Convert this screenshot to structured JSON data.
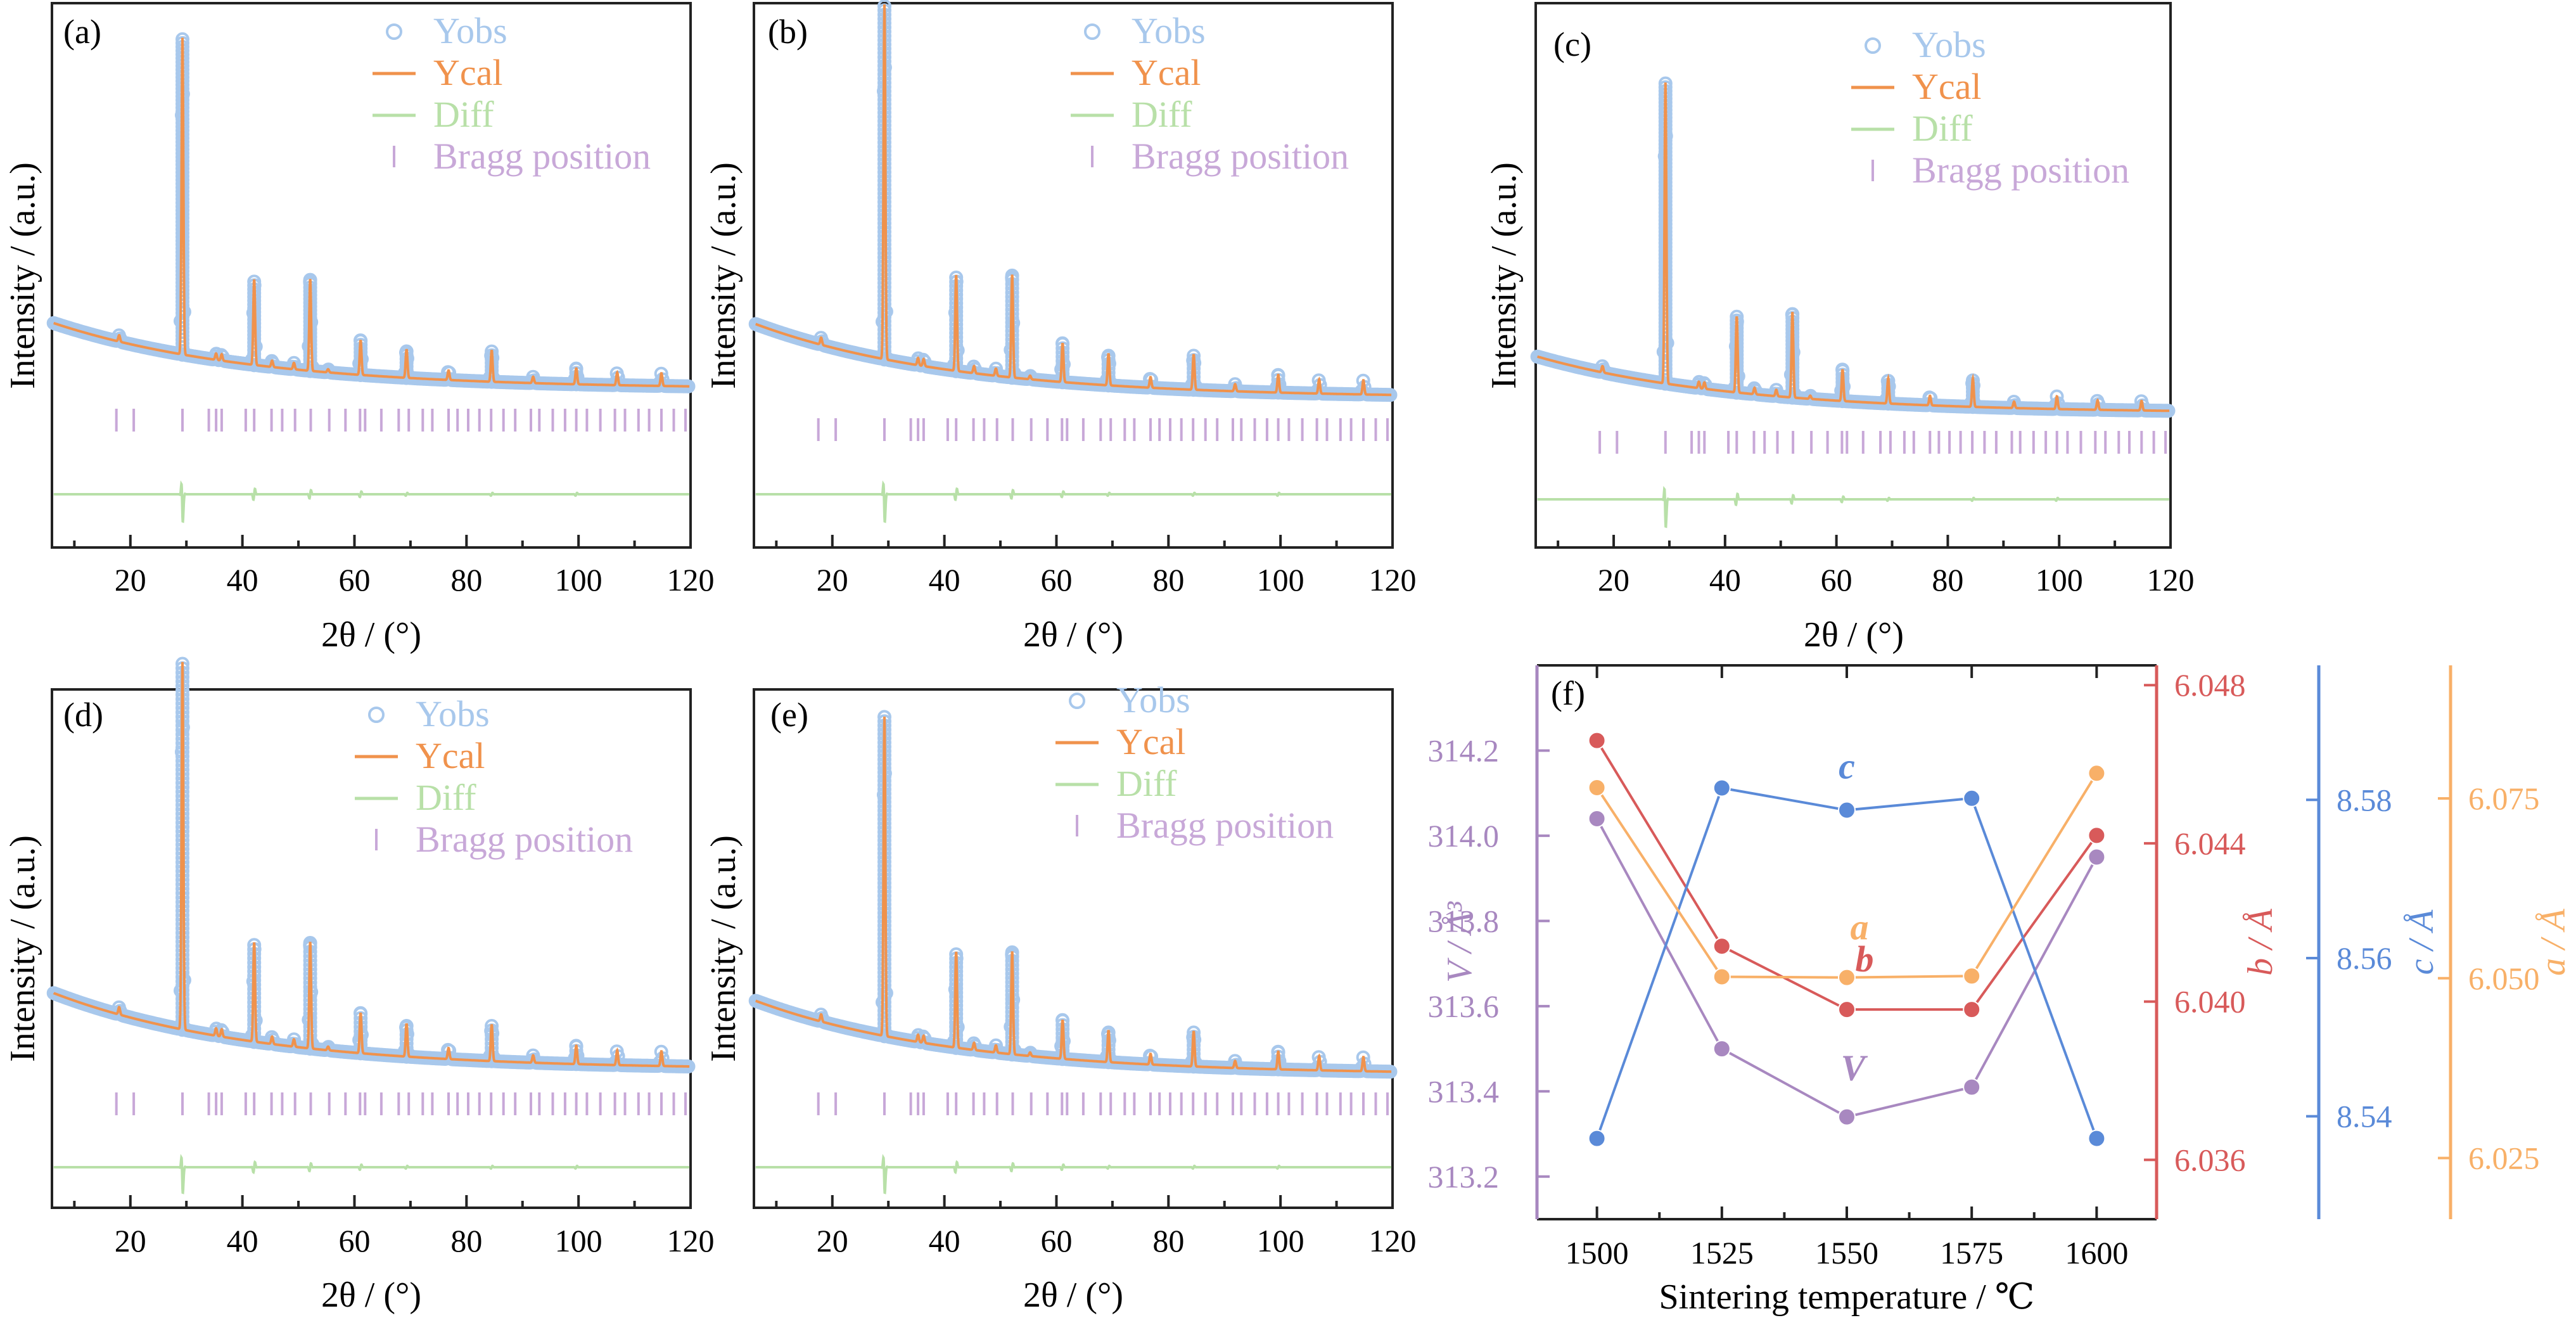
{
  "colors": {
    "obs": "#a8c8ec",
    "calc": "#f0924c",
    "diff": "#b8e0a8",
    "bragg": "#c8a8d8",
    "V": "#a888c0",
    "b": "#d85a5a",
    "c": "#5a8ad8",
    "a": "#f8b068",
    "axis": "#222222"
  },
  "xrd_common": {
    "xlabel": "2θ / (°)",
    "ylabel": "Intensity / (a.u.)",
    "xlim": [
      6,
      120
    ],
    "xticks": [
      20,
      40,
      60,
      80,
      100,
      120
    ],
    "legend": [
      "Yobs",
      "Ycal",
      "Diff",
      "Bragg position"
    ],
    "legend_placement": "top-right",
    "bragg_positions": [
      17.5,
      20.6,
      29.3,
      34.0,
      35.3,
      36.3,
      40.6,
      42.1,
      45.2,
      47.1,
      49.4,
      52.2,
      55.5,
      58.4,
      61.0,
      61.9,
      64.8,
      67.9,
      69.7,
      72.2,
      73.9,
      76.8,
      78.4,
      80.3,
      82.3,
      84.4,
      86.6,
      88.7,
      91.5,
      93.0,
      95.4,
      97.6,
      99.6,
      101.5,
      103.9,
      106.5,
      108.3,
      110.7,
      112.6,
      114.8,
      117.0,
      119.1
    ]
  },
  "chart_data": [
    {
      "type": "line",
      "panel": "(a)",
      "background": {
        "start": 0.29,
        "end": 0.08
      },
      "peaks": [
        [
          18.0,
          0.02
        ],
        [
          29.3,
          1.0
        ],
        [
          35.3,
          0.02
        ],
        [
          36.3,
          0.02
        ],
        [
          42.1,
          0.27
        ],
        [
          45.3,
          0.02
        ],
        [
          49.2,
          0.02
        ],
        [
          52.1,
          0.29
        ],
        [
          55.3,
          0.01
        ],
        [
          61.1,
          0.11
        ],
        [
          69.3,
          0.09
        ],
        [
          76.8,
          0.03
        ],
        [
          84.5,
          0.1
        ],
        [
          91.9,
          0.02
        ],
        [
          99.6,
          0.05
        ],
        [
          106.9,
          0.04
        ],
        [
          114.8,
          0.04
        ]
      ],
      "diff_spikes": [
        [
          29.3,
          -0.11
        ],
        [
          42.1,
          0.04
        ],
        [
          52.1,
          0.03
        ],
        [
          61.1,
          0.02
        ],
        [
          69.3,
          0.01
        ],
        [
          84.5,
          0.01
        ],
        [
          99.6,
          0.01
        ]
      ]
    },
    {
      "type": "line",
      "panel": "(b)",
      "background": {
        "start": 0.29,
        "end": 0.08
      },
      "peaks": [
        [
          18.0,
          0.02
        ],
        [
          29.3,
          1.0
        ],
        [
          35.3,
          0.02
        ],
        [
          36.3,
          0.02
        ],
        [
          42.1,
          0.27
        ],
        [
          45.3,
          0.02
        ],
        [
          49.2,
          0.02
        ],
        [
          52.1,
          0.29
        ],
        [
          55.3,
          0.01
        ],
        [
          61.1,
          0.11
        ],
        [
          69.3,
          0.09
        ],
        [
          76.8,
          0.03
        ],
        [
          84.5,
          0.1
        ],
        [
          91.9,
          0.02
        ],
        [
          99.6,
          0.05
        ],
        [
          106.9,
          0.04
        ],
        [
          114.8,
          0.04
        ]
      ],
      "diff_spikes": [
        [
          29.3,
          -0.11
        ],
        [
          42.1,
          0.04
        ],
        [
          52.1,
          0.03
        ],
        [
          61.1,
          0.02
        ],
        [
          69.3,
          0.01
        ],
        [
          84.5,
          0.01
        ],
        [
          99.6,
          0.01
        ]
      ]
    },
    {
      "type": "line",
      "panel": "(c)",
      "background": {
        "start": 0.24,
        "end": 0.06
      },
      "peaks": [
        [
          18.0,
          0.02
        ],
        [
          29.3,
          0.95
        ],
        [
          35.3,
          0.02
        ],
        [
          36.3,
          0.02
        ],
        [
          42.1,
          0.24
        ],
        [
          45.3,
          0.02
        ],
        [
          49.2,
          0.02
        ],
        [
          52.1,
          0.27
        ],
        [
          55.3,
          0.01
        ],
        [
          61.1,
          0.1
        ],
        [
          69.3,
          0.08
        ],
        [
          76.8,
          0.03
        ],
        [
          84.5,
          0.09
        ],
        [
          91.9,
          0.02
        ],
        [
          99.6,
          0.04
        ],
        [
          106.9,
          0.03
        ],
        [
          114.8,
          0.03
        ]
      ],
      "diff_spikes": [
        [
          29.3,
          -0.11
        ],
        [
          42.1,
          0.04
        ],
        [
          52.1,
          0.03
        ],
        [
          61.1,
          0.02
        ],
        [
          69.3,
          0.01
        ],
        [
          84.5,
          0.01
        ],
        [
          99.6,
          0.01
        ]
      ]
    },
    {
      "type": "line",
      "panel": "(d)",
      "background": {
        "start": 0.29,
        "end": 0.08
      },
      "peaks": [
        [
          18.0,
          0.02
        ],
        [
          29.3,
          1.0
        ],
        [
          35.3,
          0.02
        ],
        [
          36.3,
          0.02
        ],
        [
          42.1,
          0.27
        ],
        [
          45.3,
          0.02
        ],
        [
          49.2,
          0.02
        ],
        [
          52.1,
          0.29
        ],
        [
          55.3,
          0.01
        ],
        [
          61.1,
          0.11
        ],
        [
          69.3,
          0.09
        ],
        [
          76.8,
          0.03
        ],
        [
          84.5,
          0.1
        ],
        [
          91.9,
          0.02
        ],
        [
          99.6,
          0.05
        ],
        [
          106.9,
          0.04
        ],
        [
          114.8,
          0.04
        ]
      ],
      "diff_spikes": [
        [
          29.3,
          -0.11
        ],
        [
          42.1,
          0.04
        ],
        [
          52.1,
          0.03
        ],
        [
          61.1,
          0.02
        ],
        [
          69.3,
          0.01
        ],
        [
          84.5,
          0.01
        ],
        [
          99.6,
          0.01
        ]
      ]
    },
    {
      "type": "line",
      "panel": "(e)",
      "background": {
        "start": 0.29,
        "end": 0.08
      },
      "peaks": [
        [
          18.0,
          0.02
        ],
        [
          29.3,
          0.9
        ],
        [
          35.3,
          0.02
        ],
        [
          36.3,
          0.02
        ],
        [
          42.1,
          0.27
        ],
        [
          45.3,
          0.02
        ],
        [
          49.2,
          0.02
        ],
        [
          52.1,
          0.29
        ],
        [
          55.3,
          0.01
        ],
        [
          61.1,
          0.11
        ],
        [
          69.3,
          0.09
        ],
        [
          76.8,
          0.03
        ],
        [
          84.5,
          0.1
        ],
        [
          91.9,
          0.02
        ],
        [
          99.6,
          0.05
        ],
        [
          106.9,
          0.04
        ],
        [
          114.8,
          0.04
        ]
      ],
      "diff_spikes": [
        [
          29.3,
          -0.11
        ],
        [
          42.1,
          0.04
        ],
        [
          52.1,
          0.03
        ],
        [
          61.1,
          0.02
        ],
        [
          69.3,
          0.01
        ],
        [
          84.5,
          0.01
        ],
        [
          99.6,
          0.01
        ]
      ]
    },
    {
      "type": "line",
      "panel": "(f)",
      "xlabel": "Sintering temperature / ℃",
      "x": [
        1500,
        1525,
        1550,
        1575,
        1600
      ],
      "xticks": [
        1500,
        1525,
        1550,
        1575,
        1600
      ],
      "xlim": [
        1488,
        1612
      ],
      "series": [
        {
          "name": "V",
          "axis_label": "V / Å³",
          "values": [
            314.04,
            313.5,
            313.34,
            313.41,
            313.95
          ],
          "ylim": [
            313.1,
            314.4
          ],
          "yticks": [
            313.2,
            313.4,
            313.6,
            313.8,
            314.0,
            314.2
          ]
        },
        {
          "name": "b",
          "axis_label": "b / Å",
          "values": [
            6.0466,
            6.0414,
            6.0398,
            6.0398,
            6.0442
          ],
          "ylim": [
            6.0345,
            6.0485
          ],
          "yticks": [
            6.036,
            6.04,
            6.044,
            6.048
          ]
        },
        {
          "name": "c",
          "axis_label": "c / Å",
          "values": [
            8.5372,
            8.5815,
            8.5787,
            8.5802,
            8.5372
          ],
          "ylim": [
            8.527,
            8.597
          ],
          "yticks": [
            8.54,
            8.56,
            8.58
          ]
        },
        {
          "name": "a",
          "axis_label": "a / Å",
          "values": [
            6.0765,
            6.0502,
            6.0501,
            6.0503,
            6.0785
          ],
          "ylim": [
            6.0165,
            6.0935
          ],
          "yticks": [
            6.025,
            6.05,
            6.075
          ]
        }
      ]
    }
  ]
}
